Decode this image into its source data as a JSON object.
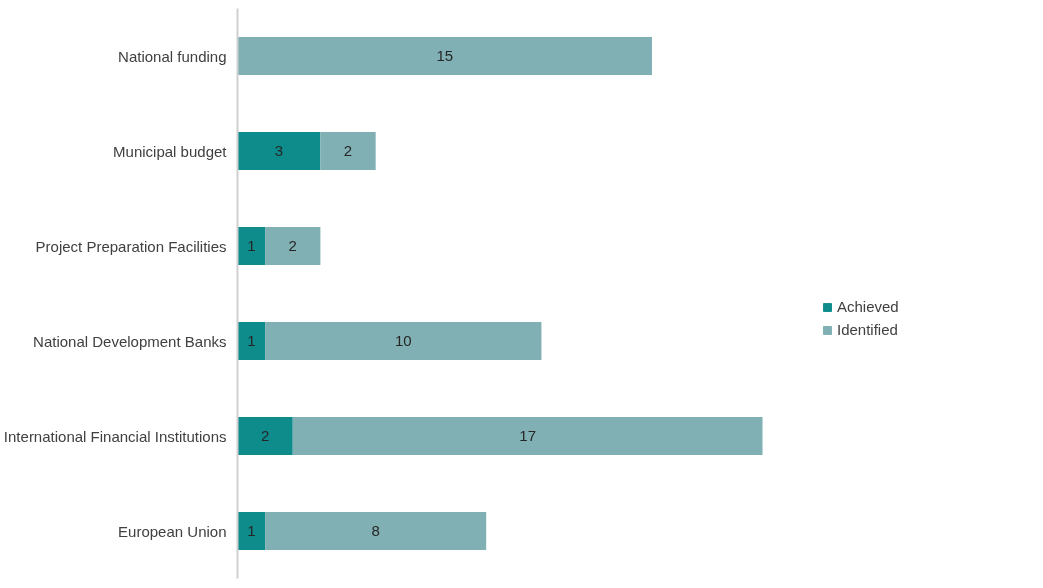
{
  "chart_data": {
    "type": "bar",
    "orientation": "horizontal",
    "stacked": true,
    "data_labels": true,
    "legend": "right",
    "grid": false,
    "tick_labels": "y",
    "categories": [
      "National funding",
      "Municipal budget",
      "Project Preparation Facilities",
      "National Development Banks",
      "International Financial Institutions",
      "European Union"
    ],
    "series": [
      {
        "name": "Achieved",
        "color": "#0e8c8c",
        "values": [
          null,
          3,
          1,
          1,
          2,
          1
        ]
      },
      {
        "name": "Identified",
        "color": "#80b0b3",
        "values": [
          15,
          2,
          2,
          10,
          17,
          8
        ]
      }
    ]
  }
}
